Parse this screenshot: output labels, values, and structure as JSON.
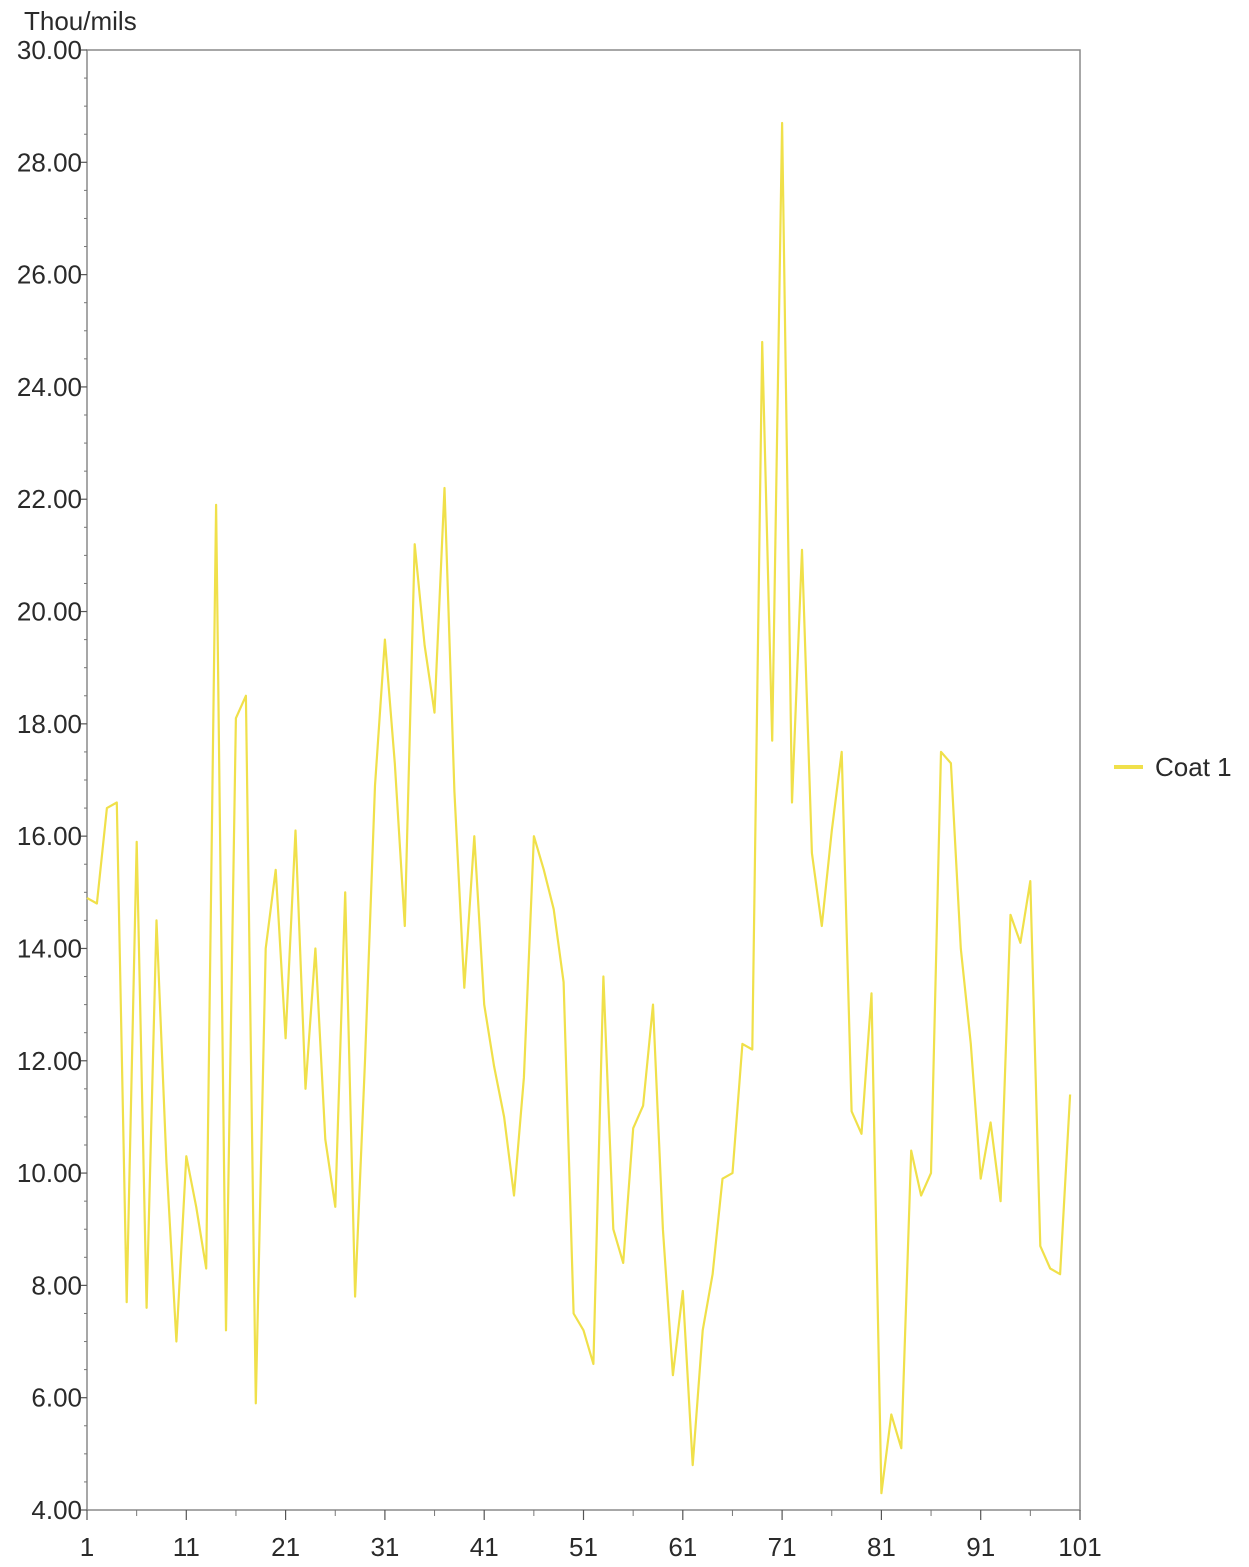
{
  "chart_data": {
    "type": "line",
    "title": "",
    "xlabel": "",
    "ylabel": "Thou/mils",
    "xlim": [
      1,
      101
    ],
    "ylim": [
      4,
      30
    ],
    "x_ticks": [
      "1",
      "11",
      "21",
      "31",
      "41",
      "51",
      "61",
      "71",
      "81",
      "91",
      "101"
    ],
    "y_ticks": [
      "4.00",
      "6.00",
      "8.00",
      "10.00",
      "12.00",
      "14.00",
      "16.00",
      "18.00",
      "20.00",
      "22.00",
      "24.00",
      "26.00",
      "28.00",
      "30.00"
    ],
    "grid": false,
    "legend": "right",
    "series": [
      {
        "name": "Coat 1",
        "color": "#f0e04a",
        "x": [
          1,
          2,
          3,
          4,
          5,
          6,
          7,
          8,
          9,
          10,
          11,
          12,
          13,
          14,
          15,
          16,
          17,
          18,
          19,
          20,
          21,
          22,
          23,
          24,
          25,
          26,
          27,
          28,
          29,
          30,
          31,
          32,
          33,
          34,
          35,
          36,
          37,
          38,
          39,
          40,
          41,
          42,
          43,
          44,
          45,
          46,
          47,
          48,
          49,
          50,
          51,
          52,
          53,
          54,
          55,
          56,
          57,
          58,
          59,
          60,
          61,
          62,
          63,
          64,
          65,
          66,
          67,
          68,
          69,
          70,
          71,
          72,
          73,
          74,
          75,
          76,
          77,
          78,
          79,
          80,
          81,
          82,
          83,
          84,
          85,
          86,
          87,
          88,
          89,
          90,
          91,
          92,
          93,
          94,
          95,
          96,
          97,
          98,
          99,
          100
        ],
        "values": [
          14.9,
          14.8,
          16.5,
          16.6,
          7.7,
          15.9,
          7.6,
          14.5,
          10.2,
          7.0,
          10.3,
          9.4,
          8.3,
          21.9,
          7.2,
          18.1,
          18.5,
          5.9,
          14.0,
          15.4,
          12.4,
          16.1,
          11.5,
          14.0,
          10.6,
          9.4,
          15.0,
          7.8,
          12.0,
          16.9,
          19.5,
          17.3,
          14.4,
          21.2,
          19.4,
          18.2,
          22.2,
          16.8,
          13.3,
          16.0,
          13.0,
          11.9,
          11.0,
          9.6,
          11.7,
          16.0,
          15.4,
          14.7,
          13.4,
          7.5,
          7.2,
          6.6,
          13.5,
          9.0,
          8.4,
          10.8,
          11.2,
          13.0,
          9.0,
          6.4,
          7.9,
          4.8,
          7.2,
          8.2,
          9.9,
          10.0,
          12.3,
          12.2,
          24.8,
          17.7,
          28.7,
          16.6,
          21.1,
          15.7,
          14.4,
          16.1,
          17.5,
          11.1,
          10.7,
          13.2,
          4.3,
          5.7,
          5.1,
          10.4,
          9.6,
          10.0,
          17.5,
          17.3,
          14.0,
          12.3,
          9.9,
          10.9,
          9.5,
          14.6,
          14.1,
          15.2,
          8.7,
          8.3,
          8.2,
          11.4
        ]
      }
    ]
  }
}
